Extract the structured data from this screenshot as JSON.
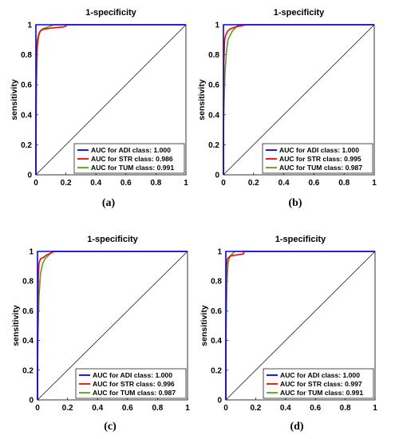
{
  "chart_data": [
    {
      "type": "line",
      "title": "1-specificity",
      "ylabel": "sensitivity",
      "xlim": [
        0,
        1
      ],
      "ylim": [
        0,
        1
      ],
      "x_ticks": [
        "0",
        "0.2",
        "0.4",
        "0.6",
        "0.8",
        "1"
      ],
      "y_ticks": [
        "0",
        "0.2",
        "0.4",
        "0.6",
        "0.8",
        "1"
      ],
      "legend_position": "bottom-right",
      "caption": "(a)",
      "series": [
        {
          "name": "AUC for ADI class: 1.000",
          "color": "#0000ff",
          "x": [
            0,
            0,
            0,
            0.04,
            0.2,
            1
          ],
          "y": [
            0,
            0.6,
            1,
            1,
            1,
            1
          ]
        },
        {
          "name": "AUC for STR class: 0.986",
          "color": "#ff0000",
          "x": [
            0,
            0,
            0.004,
            0.01,
            0.02,
            0.03,
            0.05,
            0.08,
            0.12,
            0.18,
            0.2,
            0.2,
            1
          ],
          "y": [
            0,
            0.5,
            0.8,
            0.9,
            0.94,
            0.96,
            0.97,
            0.975,
            0.98,
            0.985,
            0.99,
            1,
            1
          ]
        },
        {
          "name": "AUC for TUM class: 0.991",
          "color": "#4fa814",
          "x": [
            0,
            0,
            0.004,
            0.01,
            0.02,
            0.03,
            0.05,
            0.08,
            0.12,
            1
          ],
          "y": [
            0,
            0.15,
            0.6,
            0.85,
            0.93,
            0.96,
            0.975,
            0.985,
            1,
            1
          ]
        }
      ]
    },
    {
      "type": "line",
      "title": "1-specificity",
      "ylabel": "sensitivity",
      "xlim": [
        0,
        1
      ],
      "ylim": [
        0,
        1
      ],
      "x_ticks": [
        "0",
        "0.2",
        "0.4",
        "0.6",
        "0.8",
        "1"
      ],
      "y_ticks": [
        "0",
        "0.2",
        "0.4",
        "0.6",
        "0.8",
        "1"
      ],
      "legend_position": "bottom-right",
      "caption": "(b)",
      "series": [
        {
          "name": "AUC for ADI class: 1.000",
          "color": "#0000ff",
          "x": [
            0,
            0,
            0,
            0.05,
            1
          ],
          "y": [
            0,
            0.7,
            1,
            1,
            1
          ]
        },
        {
          "name": "AUC for STR class: 0.995",
          "color": "#ff0000",
          "x": [
            0,
            0,
            0.003,
            0.008,
            0.015,
            0.03,
            0.05,
            0.08,
            0.15,
            1
          ],
          "y": [
            0,
            0.35,
            0.75,
            0.9,
            0.93,
            0.96,
            0.975,
            0.985,
            1,
            1
          ]
        },
        {
          "name": "AUC for TUM class: 0.987",
          "color": "#4fa814",
          "x": [
            0,
            0,
            0.005,
            0.01,
            0.02,
            0.03,
            0.05,
            0.06,
            0.08,
            0.1,
            1
          ],
          "y": [
            0,
            0.3,
            0.5,
            0.68,
            0.82,
            0.9,
            0.94,
            0.96,
            0.98,
            1,
            1
          ]
        }
      ]
    },
    {
      "type": "line",
      "title": "1-specificity",
      "ylabel": "sensitivity",
      "xlim": [
        0,
        1
      ],
      "ylim": [
        0,
        1
      ],
      "x_ticks": [
        "0",
        "0.2",
        "0.4",
        "0.6",
        "0.8",
        "1"
      ],
      "y_ticks": [
        "0",
        "0.2",
        "0.4",
        "0.6",
        "0.8",
        "1"
      ],
      "legend_position": "bottom-right",
      "caption": "(c)",
      "series": [
        {
          "name": "AUC for ADI class: 1.000",
          "color": "#0000ff",
          "x": [
            0,
            0,
            0,
            0.08,
            1
          ],
          "y": [
            0,
            0.65,
            1,
            1,
            1
          ]
        },
        {
          "name": "AUC for STR class: 0.996",
          "color": "#ff0000",
          "x": [
            0,
            0,
            0.003,
            0.006,
            0.01,
            0.02,
            0.04,
            0.06,
            0.08,
            0.11,
            1
          ],
          "y": [
            0,
            0.35,
            0.65,
            0.85,
            0.92,
            0.95,
            0.96,
            0.975,
            0.985,
            1,
            1
          ]
        },
        {
          "name": "AUC for TUM class: 0.987",
          "color": "#4fa814",
          "x": [
            0,
            0,
            0.005,
            0.01,
            0.02,
            0.035,
            0.05,
            0.07,
            0.1,
            1
          ],
          "y": [
            0,
            0.2,
            0.5,
            0.7,
            0.85,
            0.92,
            0.95,
            0.97,
            1,
            1
          ]
        }
      ]
    },
    {
      "type": "line",
      "title": "1-specificity",
      "ylabel": "sensitivity",
      "xlim": [
        0,
        1
      ],
      "ylim": [
        0,
        1
      ],
      "x_ticks": [
        "0",
        "0.2",
        "0.4",
        "0.6",
        "0.8",
        "1"
      ],
      "y_ticks": [
        "0",
        "0.2",
        "0.4",
        "0.6",
        "0.8",
        "1"
      ],
      "legend_position": "bottom-right",
      "caption": "(d)",
      "series": [
        {
          "name": "AUC for ADI class: 1.000",
          "color": "#0000ff",
          "x": [
            0,
            0,
            0,
            0.08,
            1
          ],
          "y": [
            0,
            0.7,
            1,
            1,
            1
          ]
        },
        {
          "name": "AUC for STR class: 0.997",
          "color": "#ff0000",
          "x": [
            0,
            0,
            0.002,
            0.005,
            0.01,
            0.02,
            0.03,
            0.06,
            0.1,
            0.12,
            0.12,
            1
          ],
          "y": [
            0,
            0.45,
            0.8,
            0.9,
            0.95,
            0.96,
            0.97,
            0.975,
            0.98,
            0.985,
            1,
            1
          ]
        },
        {
          "name": "AUC for TUM class: 0.991",
          "color": "#4fa814",
          "x": [
            0,
            0,
            0.003,
            0.008,
            0.015,
            0.025,
            0.04,
            0.06,
            1
          ],
          "y": [
            0,
            0.2,
            0.55,
            0.8,
            0.92,
            0.96,
            0.98,
            1,
            1
          ]
        }
      ]
    }
  ]
}
